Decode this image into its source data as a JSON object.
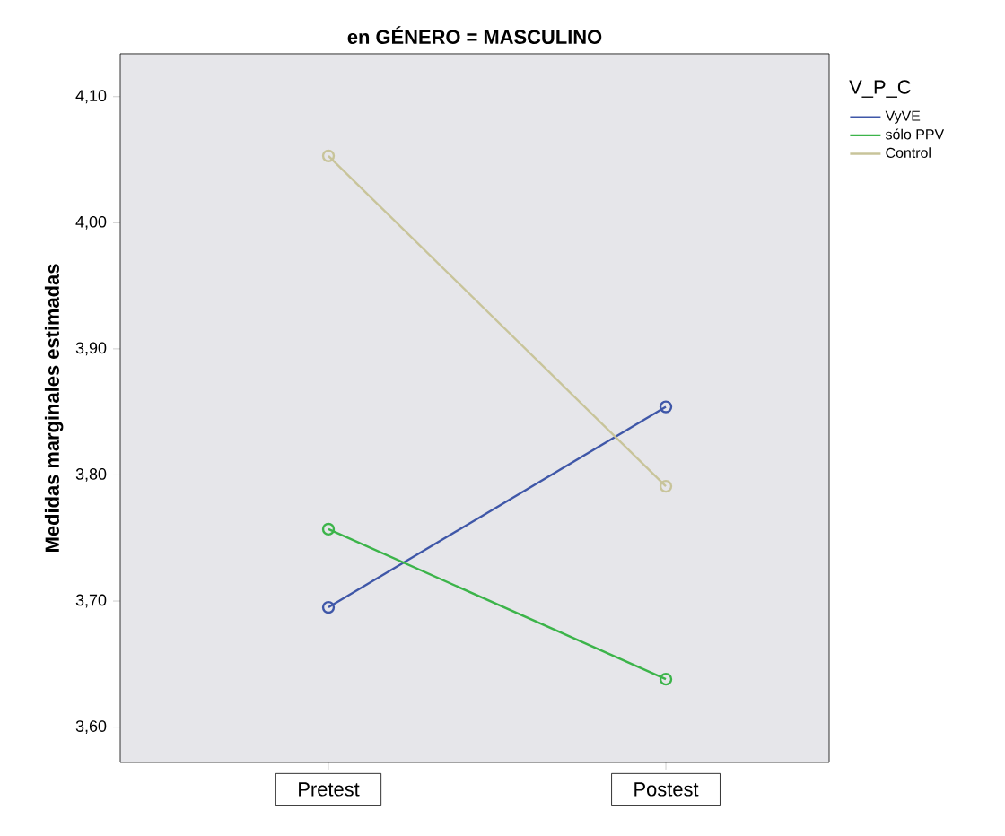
{
  "chart_data": {
    "type": "line",
    "title": "en GÉNERO = MASCULINO",
    "ylabel": "Medidas marginales estimadas",
    "legend_title": "V_P_C",
    "categories": [
      "Pretest",
      "Postest"
    ],
    "series": [
      {
        "name": "VyVE",
        "color": "#3f57a8",
        "values": [
          3.695,
          3.854
        ]
      },
      {
        "name": "sólo PPV",
        "color": "#3cb44a",
        "values": [
          3.757,
          3.638
        ]
      },
      {
        "name": "Control",
        "color": "#c8c49a",
        "values": [
          4.053,
          3.791
        ]
      }
    ],
    "ylim": [
      3.572,
      4.134
    ],
    "yticks": [
      {
        "value": 3.6,
        "label": "3,60"
      },
      {
        "value": 3.7,
        "label": "3,70"
      },
      {
        "value": 3.8,
        "label": "3,80"
      },
      {
        "value": 3.9,
        "label": "3,90"
      },
      {
        "value": 4.0,
        "label": "4,00"
      },
      {
        "value": 4.1,
        "label": "4,10"
      }
    ],
    "grid": false,
    "legend": "right",
    "marker": "circle",
    "line_style": "solid"
  }
}
